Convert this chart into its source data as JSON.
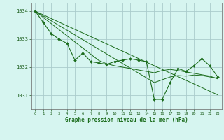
{
  "background_color": "#cceedd",
  "plot_bg": "#d6f5f0",
  "grid_color": "#aacccc",
  "line_color": "#1a6b1a",
  "label_color": "#1a5c1a",
  "xlabel": "Graphe pression niveau de la mer (hPa)",
  "ylim": [
    1030.5,
    1034.3
  ],
  "xlim": [
    -0.5,
    23.5
  ],
  "yticks": [
    1031,
    1032,
    1033,
    1034
  ],
  "xticks": [
    0,
    1,
    2,
    3,
    4,
    5,
    6,
    7,
    8,
    9,
    10,
    11,
    12,
    13,
    14,
    15,
    16,
    17,
    18,
    19,
    20,
    21,
    22,
    23
  ],
  "series": {
    "main": [
      1034.0,
      1033.6,
      1033.2,
      1033.0,
      1032.85,
      1032.25,
      1032.5,
      1032.2,
      1032.15,
      1032.1,
      1032.2,
      1032.25,
      1032.3,
      1032.25,
      1032.2,
      1030.85,
      1030.85,
      1031.45,
      1031.95,
      1031.85,
      1032.05,
      1032.3,
      1032.05,
      1031.65
    ],
    "trend1": [
      1034.0,
      1033.87,
      1033.74,
      1033.61,
      1033.48,
      1033.35,
      1033.22,
      1033.09,
      1032.96,
      1032.83,
      1032.7,
      1032.57,
      1032.44,
      1032.31,
      1032.18,
      1032.05,
      1031.92,
      1031.79,
      1031.66,
      1031.53,
      1031.4,
      1031.27,
      1031.14,
      1031.01
    ],
    "trend2": [
      1034.0,
      1033.83,
      1033.66,
      1033.49,
      1033.32,
      1033.15,
      1032.98,
      1032.81,
      1032.64,
      1032.47,
      1032.3,
      1032.13,
      1031.96,
      1031.79,
      1031.62,
      1031.45,
      1031.55,
      1031.65,
      1031.7,
      1031.68,
      1031.72,
      1031.7,
      1031.65,
      1031.6
    ],
    "trend3": [
      1034.0,
      1033.78,
      1033.56,
      1033.34,
      1033.12,
      1032.9,
      1032.68,
      1032.46,
      1032.24,
      1032.12,
      1032.05,
      1032.0,
      1031.95,
      1031.9,
      1031.85,
      1031.8,
      1031.88,
      1031.92,
      1031.88,
      1031.83,
      1031.78,
      1031.73,
      1031.68,
      1031.58
    ]
  }
}
